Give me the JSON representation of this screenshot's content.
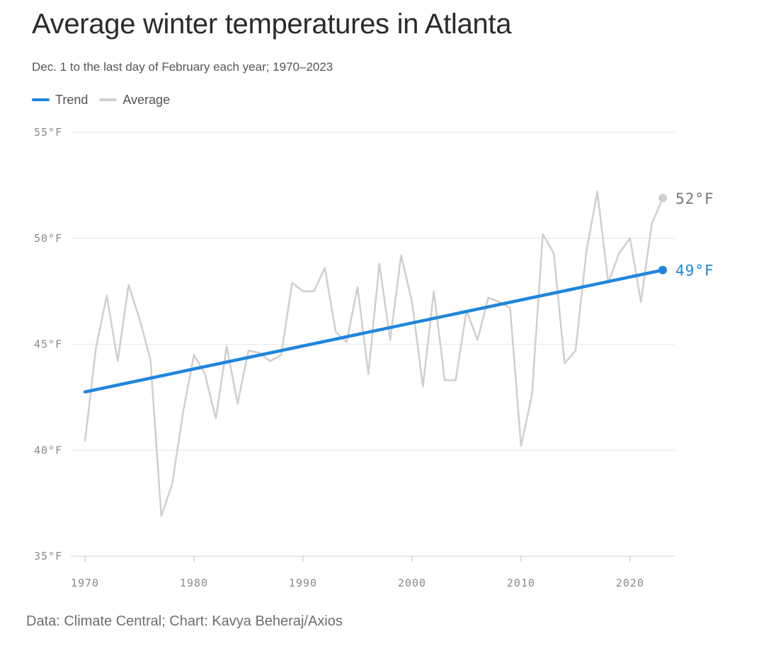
{
  "title": "Average winter temperatures in Atlanta",
  "subtitle": "Dec. 1 to the last day of February each year; 1970–2023",
  "legend": [
    {
      "label": "Trend",
      "color": "#1f86dc"
    },
    {
      "label": "Average",
      "color": "#cfcfcf"
    }
  ],
  "footer": "Data: Climate Central; Chart: Kavya Beheraj/Axios",
  "chart_data": {
    "type": "line",
    "x": [
      1970,
      1971,
      1972,
      1973,
      1974,
      1975,
      1976,
      1977,
      1978,
      1979,
      1980,
      1981,
      1982,
      1983,
      1984,
      1985,
      1986,
      1987,
      1988,
      1989,
      1990,
      1991,
      1992,
      1993,
      1994,
      1995,
      1996,
      1997,
      1998,
      1999,
      2000,
      2001,
      2002,
      2003,
      2004,
      2005,
      2006,
      2007,
      2008,
      2009,
      2010,
      2011,
      2012,
      2013,
      2014,
      2015,
      2016,
      2017,
      2018,
      2019,
      2020,
      2021,
      2022,
      2023
    ],
    "series": [
      {
        "name": "Average",
        "color": "#cfcfcf",
        "values": [
          40.4,
          44.8,
          47.3,
          44.2,
          47.8,
          46.2,
          44.3,
          36.9,
          38.4,
          41.8,
          44.5,
          43.6,
          41.5,
          44.9,
          42.2,
          44.7,
          44.6,
          44.2,
          44.5,
          47.9,
          47.5,
          47.5,
          48.6,
          45.6,
          45.1,
          47.7,
          43.6,
          48.8,
          45.2,
          49.2,
          47.0,
          43.0,
          47.5,
          43.3,
          43.3,
          46.6,
          45.2,
          47.2,
          47.0,
          46.7,
          40.2,
          42.6,
          50.2,
          49.3,
          44.1,
          44.7,
          49.4,
          52.2,
          47.9,
          49.3,
          50.0,
          47.0,
          50.7,
          51.9
        ]
      },
      {
        "name": "Trend",
        "color": "#1f86dc",
        "values": [
          42.75,
          48.5
        ],
        "x": [
          1970,
          2023
        ]
      }
    ],
    "end_labels": [
      {
        "series": "Average",
        "text": "52°F",
        "value": 51.9
      },
      {
        "series": "Trend",
        "text": "49°F",
        "value": 48.5
      }
    ],
    "y_ticks": [
      {
        "value": 35,
        "label": "35°F"
      },
      {
        "value": 40,
        "label": "40°F"
      },
      {
        "value": 45,
        "label": "45°F"
      },
      {
        "value": 50,
        "label": "50°F"
      },
      {
        "value": 55,
        "label": "55°F"
      }
    ],
    "x_ticks": [
      {
        "value": 1970,
        "label": "1970"
      },
      {
        "value": 1980,
        "label": "1980"
      },
      {
        "value": 1990,
        "label": "1990"
      },
      {
        "value": 2000,
        "label": "2000"
      },
      {
        "value": 2010,
        "label": "2010"
      },
      {
        "value": 2020,
        "label": "2020"
      }
    ],
    "ylim": [
      35,
      55
    ],
    "xlim": [
      1970,
      2023
    ],
    "grid": "horizontal",
    "legend_position": "top-left"
  }
}
